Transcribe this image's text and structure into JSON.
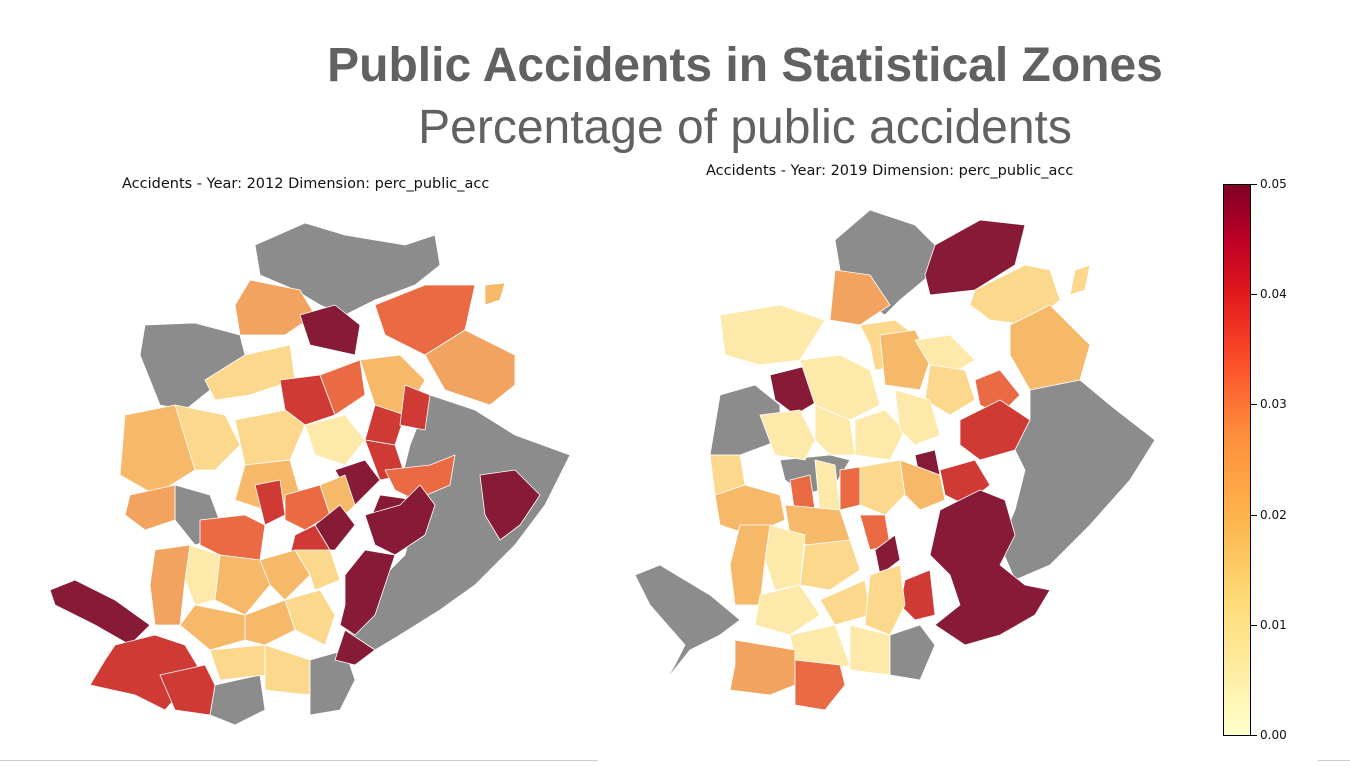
{
  "header": {
    "title": "Public Accidents in Statistical Zones",
    "subtitle": "Percentage of public accidents"
  },
  "maps": [
    {
      "label": "Accidents - Year: 2012 Dimension: perc_public_acc"
    },
    {
      "label": "Accidents - Year: 2019 Dimension: perc_public_acc"
    }
  ],
  "legend": {
    "ticks": [
      "0.00",
      "0.01",
      "0.02",
      "0.03",
      "0.04",
      "0.05"
    ],
    "range": [
      0,
      0.05
    ],
    "colormap": "YlOrRd"
  },
  "colors": {
    "no_data": "#8c8c8c",
    "c1": "#fde9a9",
    "c2": "#fbd88b",
    "c3": "#f6b96a",
    "c4": "#f2a35f",
    "c5": "#ea6a44",
    "c6": "#cf3a35",
    "c7": "#871b37"
  }
}
